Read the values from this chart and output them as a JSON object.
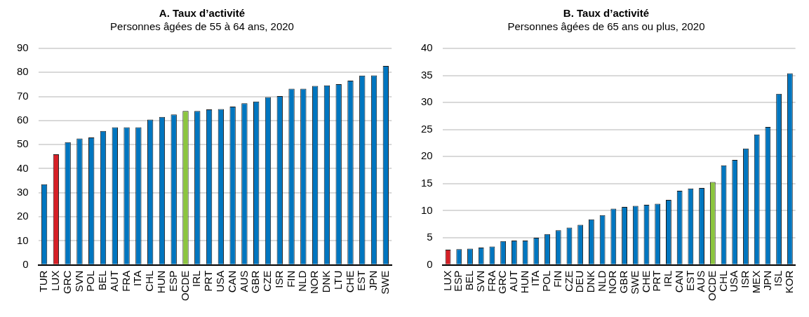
{
  "chart_data": [
    {
      "type": "bar",
      "title": "A. Taux d’activité",
      "subtitle": "Personnes âgées de 55 à 64 ans, 2020",
      "categories": [
        "TUR",
        "LUX",
        "GRC",
        "SVN",
        "POL",
        "BEL",
        "AUT",
        "FRA",
        "ITA",
        "CHL",
        "HUN",
        "ESP",
        "OCDE",
        "IRL",
        "PRT",
        "USA",
        "CAN",
        "AUS",
        "GBR",
        "CZE",
        "ISR",
        "FIN",
        "NLD",
        "NOR",
        "DNK",
        "LTU",
        "CHE",
        "EST",
        "JPN",
        "SWE"
      ],
      "values": [
        33.5,
        46,
        51,
        52.5,
        53,
        55.7,
        57.2,
        57.2,
        57.2,
        60.4,
        61.5,
        62.5,
        64,
        64,
        64.6,
        64.8,
        65.8,
        67.2,
        67.9,
        69.7,
        70.2,
        73.2,
        73.2,
        74.4,
        74.6,
        75.1,
        76.6,
        78.7,
        78.8,
        82.7
      ],
      "colors": [
        "#0076c0",
        "#d62027",
        "#0076c0",
        "#0076c0",
        "#0076c0",
        "#0076c0",
        "#0076c0",
        "#0076c0",
        "#0076c0",
        "#0076c0",
        "#0076c0",
        "#0076c0",
        "#8cc63f",
        "#0076c0",
        "#0076c0",
        "#0076c0",
        "#0076c0",
        "#0076c0",
        "#0076c0",
        "#0076c0",
        "#0076c0",
        "#0076c0",
        "#0076c0",
        "#0076c0",
        "#0076c0",
        "#0076c0",
        "#0076c0",
        "#0076c0",
        "#0076c0",
        "#0076c0"
      ],
      "ylim": [
        0,
        90
      ],
      "yticks": [
        0,
        10,
        20,
        30,
        40,
        50,
        60,
        70,
        80,
        90
      ],
      "grid": "y"
    },
    {
      "type": "bar",
      "title": "B. Taux d’activité",
      "subtitle": "Personnes âgées de 65 ans ou plus, 2020",
      "categories": [
        "LUX",
        "ESP",
        "BEL",
        "SVN",
        "FRA",
        "GRC",
        "AUT",
        "HUN",
        "ITA",
        "POL",
        "FIN",
        "CZE",
        "DEU",
        "DNK",
        "NLD",
        "NOR",
        "GBR",
        "SWE",
        "CHE",
        "PRT",
        "IRL",
        "CAN",
        "EST",
        "AUS",
        "OCDE",
        "CHL",
        "USA",
        "ISR",
        "MEX",
        "JPN",
        "ISL",
        "KOR"
      ],
      "values": [
        2.8,
        2.9,
        3,
        3.2,
        3.4,
        4.4,
        4.5,
        4.5,
        5,
        5.7,
        6.4,
        6.9,
        7.4,
        8.4,
        9.2,
        10.4,
        10.7,
        10.9,
        11.1,
        11.3,
        12,
        13.7,
        14.1,
        14.2,
        15.3,
        18.4,
        19.4,
        21.5,
        24.1,
        25.5,
        31.6,
        35.4
      ],
      "colors": [
        "#d62027",
        "#0076c0",
        "#0076c0",
        "#0076c0",
        "#0076c0",
        "#0076c0",
        "#0076c0",
        "#0076c0",
        "#0076c0",
        "#0076c0",
        "#0076c0",
        "#0076c0",
        "#0076c0",
        "#0076c0",
        "#0076c0",
        "#0076c0",
        "#0076c0",
        "#0076c0",
        "#0076c0",
        "#0076c0",
        "#0076c0",
        "#0076c0",
        "#0076c0",
        "#0076c0",
        "#8cc63f",
        "#0076c0",
        "#0076c0",
        "#0076c0",
        "#0076c0",
        "#0076c0",
        "#0076c0",
        "#0076c0"
      ],
      "ylim": [
        0,
        40
      ],
      "yticks": [
        0,
        5,
        10,
        15,
        20,
        25,
        30,
        35,
        40
      ],
      "grid": "y"
    }
  ]
}
